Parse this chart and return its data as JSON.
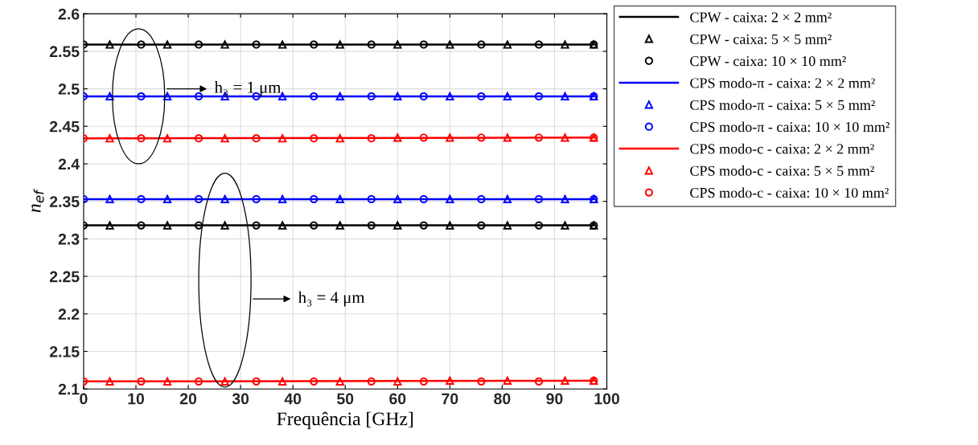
{
  "chart_data": {
    "type": "line",
    "xlabel": "Frequência [GHz]",
    "ylabel": "n$_{ef}$",
    "xlim": [
      0,
      100
    ],
    "xticks": [
      0,
      10,
      20,
      30,
      40,
      50,
      60,
      70,
      80,
      90,
      100
    ],
    "ylim": [
      2.1,
      2.6
    ],
    "yticks": [
      2.1,
      2.15,
      2.2,
      2.25,
      2.3,
      2.35,
      2.4,
      2.45,
      2.5,
      2.55,
      2.6
    ],
    "grid": true,
    "legend": "right",
    "annotations": [
      "h₃ = 1 μm",
      "h₃ = 4 μm"
    ],
    "series": [
      {
        "name": "CPW - caixa: 2 × 2 mm²",
        "color": "#000000",
        "marker": "none",
        "line_style": "solid",
        "x": [
          0,
          97.5
        ],
        "values": [
          2.559,
          2.559
        ]
      },
      {
        "name": "CPW - caixa: 5 × 5 mm²",
        "color": "#000000",
        "type": "scatter",
        "marker": "triangle",
        "x": [
          5,
          16,
          27,
          38,
          49,
          60,
          70,
          81,
          92,
          97.5
        ],
        "values": [
          2.559,
          2.559,
          2.559,
          2.559,
          2.559,
          2.559,
          2.559,
          2.559,
          2.559,
          2.559
        ]
      },
      {
        "name": "CPW - caixa: 10 × 10 mm²",
        "color": "#000000",
        "type": "scatter",
        "marker": "circle",
        "x": [
          0,
          11,
          22,
          33,
          44,
          55,
          65,
          76,
          87,
          97.5
        ],
        "values": [
          2.559,
          2.559,
          2.559,
          2.559,
          2.559,
          2.559,
          2.559,
          2.559,
          2.559,
          2.559
        ]
      },
      {
        "name": "CPS modo-π - caixa: 2 × 2 mm²",
        "color": "#0000ff",
        "marker": "none",
        "line_style": "solid",
        "x": [
          0,
          97.5
        ],
        "values": [
          2.49,
          2.49
        ]
      },
      {
        "name": "CPS modo-π - caixa: 5 × 5 mm²",
        "color": "#0000ff",
        "type": "scatter",
        "marker": "triangle",
        "x": [
          5,
          16,
          27,
          38,
          49,
          60,
          70,
          81,
          92,
          97.5
        ],
        "values": [
          2.49,
          2.49,
          2.49,
          2.49,
          2.49,
          2.49,
          2.49,
          2.49,
          2.49,
          2.49
        ]
      },
      {
        "name": "CPS modo-π - caixa: 10 × 10 mm²",
        "color": "#0000ff",
        "type": "scatter",
        "marker": "circle",
        "x": [
          0,
          11,
          22,
          33,
          44,
          55,
          65,
          76,
          87,
          97.5
        ],
        "values": [
          2.49,
          2.49,
          2.49,
          2.49,
          2.49,
          2.49,
          2.49,
          2.49,
          2.49,
          2.49
        ]
      },
      {
        "name": "CPS modo-c - caixa: 2 × 2 mm²",
        "color": "#ff0000",
        "marker": "none",
        "line_style": "solid",
        "x": [
          0,
          97.5
        ],
        "values": [
          2.434,
          2.435
        ]
      },
      {
        "name": "CPS modo-c - caixa: 5 × 5 mm²",
        "color": "#ff0000",
        "type": "scatter",
        "marker": "triangle",
        "x": [
          5,
          16,
          27,
          38,
          49,
          60,
          70,
          81,
          92,
          97.5
        ],
        "values": [
          2.434,
          2.434,
          2.434,
          2.434,
          2.434,
          2.435,
          2.435,
          2.435,
          2.435,
          2.435
        ]
      },
      {
        "name": "CPS modo-c - caixa: 10 × 10 mm²",
        "color": "#ff0000",
        "type": "scatter",
        "marker": "circle",
        "x": [
          0,
          11,
          22,
          33,
          44,
          55,
          65,
          76,
          87,
          97.5
        ],
        "values": [
          2.434,
          2.434,
          2.434,
          2.434,
          2.434,
          2.434,
          2.435,
          2.435,
          2.435,
          2.435
        ]
      },
      {
        "color": "#000000",
        "marker": "none",
        "line_style": "solid",
        "x": [
          0,
          97.5
        ],
        "values": [
          2.318,
          2.318
        ]
      },
      {
        "color": "#000000",
        "type": "scatter",
        "marker": "triangle",
        "x": [
          5,
          16,
          27,
          38,
          49,
          60,
          70,
          81,
          92,
          97.5
        ],
        "values": [
          2.318,
          2.318,
          2.318,
          2.318,
          2.318,
          2.318,
          2.318,
          2.318,
          2.318,
          2.318
        ]
      },
      {
        "color": "#000000",
        "type": "scatter",
        "marker": "circle",
        "x": [
          0,
          11,
          22,
          33,
          44,
          55,
          65,
          76,
          87,
          97.5
        ],
        "values": [
          2.318,
          2.318,
          2.318,
          2.318,
          2.318,
          2.318,
          2.318,
          2.318,
          2.318,
          2.318
        ]
      },
      {
        "color": "#0000ff",
        "marker": "none",
        "line_style": "solid",
        "x": [
          0,
          97.5
        ],
        "values": [
          2.353,
          2.353
        ]
      },
      {
        "color": "#0000ff",
        "type": "scatter",
        "marker": "triangle",
        "x": [
          5,
          16,
          27,
          38,
          49,
          60,
          70,
          81,
          92,
          97.5
        ],
        "values": [
          2.353,
          2.353,
          2.353,
          2.353,
          2.353,
          2.353,
          2.353,
          2.353,
          2.353,
          2.353
        ]
      },
      {
        "color": "#0000ff",
        "type": "scatter",
        "marker": "circle",
        "x": [
          0,
          11,
          22,
          33,
          44,
          55,
          65,
          76,
          87,
          97.5
        ],
        "values": [
          2.353,
          2.353,
          2.353,
          2.353,
          2.353,
          2.353,
          2.353,
          2.353,
          2.353,
          2.353
        ]
      },
      {
        "color": "#ff0000",
        "marker": "none",
        "line_style": "solid",
        "x": [
          0,
          97.5
        ],
        "values": [
          2.11,
          2.111
        ]
      },
      {
        "color": "#ff0000",
        "type": "scatter",
        "marker": "triangle",
        "x": [
          5,
          16,
          27,
          38,
          49,
          60,
          70,
          81,
          92,
          97.5
        ],
        "values": [
          2.11,
          2.11,
          2.11,
          2.11,
          2.11,
          2.11,
          2.111,
          2.111,
          2.111,
          2.111
        ]
      },
      {
        "color": "#ff0000",
        "type": "scatter",
        "marker": "circle",
        "x": [
          0,
          11,
          22,
          33,
          44,
          55,
          65,
          76,
          87,
          97.5
        ],
        "values": [
          2.11,
          2.11,
          2.11,
          2.11,
          2.11,
          2.11,
          2.11,
          2.11,
          2.11,
          2.111
        ]
      }
    ]
  }
}
